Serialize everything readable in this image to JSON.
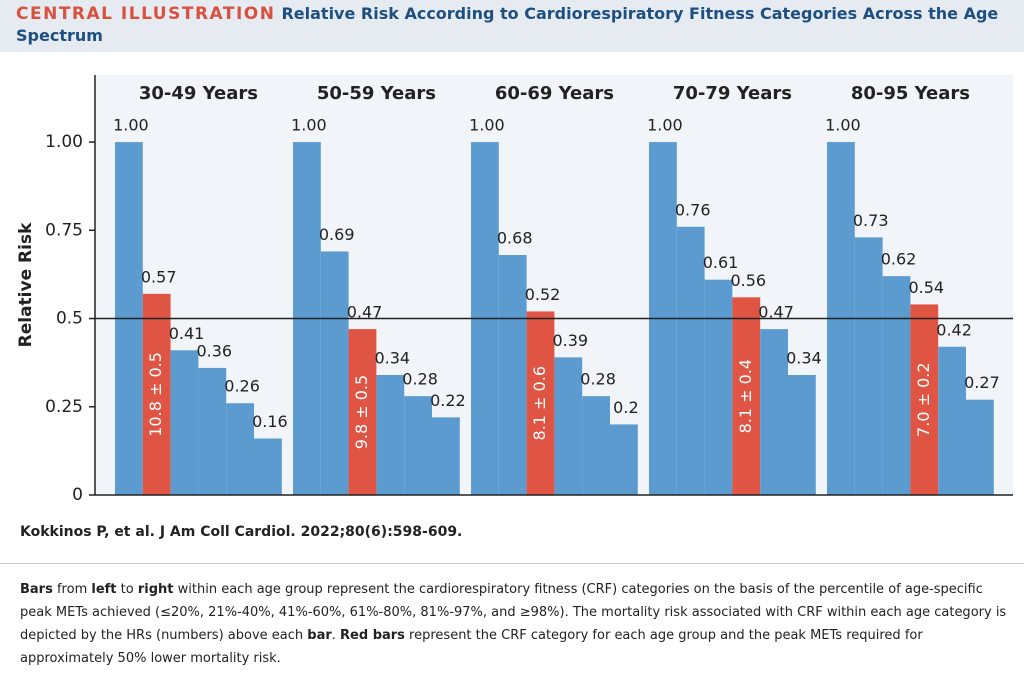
{
  "header": {
    "kicker": "CENTRAL ILLUSTRATION",
    "title": "Relative Risk According to Cardiorespiratory Fitness Categories Across the Age Spectrum"
  },
  "chart_data": {
    "type": "grouped-bar",
    "y_label": "Relative Risk",
    "ylim": [
      0,
      1.19
    ],
    "yticks": [
      0,
      0.25,
      0.5,
      0.75,
      {
        "value": 1,
        "label": "1.00"
      }
    ],
    "reference_line": 0.5,
    "groups": [
      {
        "name": "30-49 Years",
        "values": [
          1,
          0.57,
          0.41,
          0.36,
          0.26,
          0.16
        ],
        "value_labels": [
          "1.00",
          "0.57",
          "0.41",
          "0.36",
          "0.26",
          "0.16"
        ],
        "colors": [
          "#5b9bcf",
          "#e05444",
          "#5b9bcf",
          "#5b9bcf",
          "#5b9bcf",
          "#5b9bcf"
        ],
        "bar_labels": [
          null,
          "10.8 ± 0.5",
          null,
          null,
          null,
          null
        ]
      },
      {
        "name": "50-59 Years",
        "values": [
          1,
          0.69,
          0.47,
          0.34,
          0.28,
          0.22
        ],
        "value_labels": [
          "1.00",
          "0.69",
          "0.47",
          "0.34",
          "0.28",
          "0.22"
        ],
        "colors": [
          "#5b9bcf",
          "#5b9bcf",
          "#e05444",
          "#5b9bcf",
          "#5b9bcf",
          "#5b9bcf"
        ],
        "bar_labels": [
          null,
          null,
          "9.8 ± 0.5",
          null,
          null,
          null
        ]
      },
      {
        "name": "60-69 Years",
        "values": [
          1,
          0.68,
          0.52,
          0.39,
          0.28,
          0.2
        ],
        "value_labels": [
          "1.00",
          "0.68",
          "0.52",
          "0.39",
          "0.28",
          "0.2"
        ],
        "colors": [
          "#5b9bcf",
          "#5b9bcf",
          "#e05444",
          "#5b9bcf",
          "#5b9bcf",
          "#5b9bcf"
        ],
        "bar_labels": [
          null,
          null,
          "8.1 ± 0.6",
          null,
          null,
          null
        ]
      },
      {
        "name": "70-79 Years",
        "values": [
          1,
          0.76,
          0.61,
          0.56,
          0.47,
          0.34
        ],
        "value_labels": [
          "1.00",
          "0.76",
          "0.61",
          "0.56",
          "0.47",
          "0.34"
        ],
        "colors": [
          "#5b9bcf",
          "#5b9bcf",
          "#5b9bcf",
          "#e05444",
          "#5b9bcf",
          "#5b9bcf"
        ],
        "bar_labels": [
          null,
          null,
          null,
          "8.1 ± 0.4",
          null,
          null
        ]
      },
      {
        "name": "80-95 Years",
        "values": [
          1,
          0.73,
          0.62,
          0.54,
          0.42,
          0.27
        ],
        "value_labels": [
          "1.00",
          "0.73",
          "0.62",
          "0.54",
          "0.42",
          "0.27"
        ],
        "colors": [
          "#5b9bcf",
          "#5b9bcf",
          "#5b9bcf",
          "#e05444",
          "#5b9bcf",
          "#5b9bcf"
        ],
        "bar_labels": [
          null,
          null,
          null,
          "7.0 ± 0.2",
          null,
          null
        ]
      }
    ]
  },
  "citation": "Kokkinos P, et al. J Am Coll Cardiol. 2022;80(6):598-609.",
  "caption": [
    {
      "text": "Bars",
      "bold": true
    },
    {
      "text": " from ",
      "bold": false
    },
    {
      "text": "left",
      "bold": true
    },
    {
      "text": " to ",
      "bold": false
    },
    {
      "text": "right",
      "bold": true
    },
    {
      "text": " within each age group represent the cardiorespiratory fitness (CRF) categories on the basis of the percentile of age-specific peak METs achieved (≤20%, 21%-40%, 41%-60%, 61%-80%, 81%-97%, and ≥98%). The mortality risk associated with CRF within each age category is depicted by the HRs (numbers) above each ",
      "bold": false
    },
    {
      "text": "bar",
      "bold": true
    },
    {
      "text": ". ",
      "bold": false
    },
    {
      "text": "Red bars",
      "bold": true
    },
    {
      "text": " represent the CRF category for each age group and the peak METs required for approximately 50% lower mortality risk.",
      "bold": false
    }
  ]
}
